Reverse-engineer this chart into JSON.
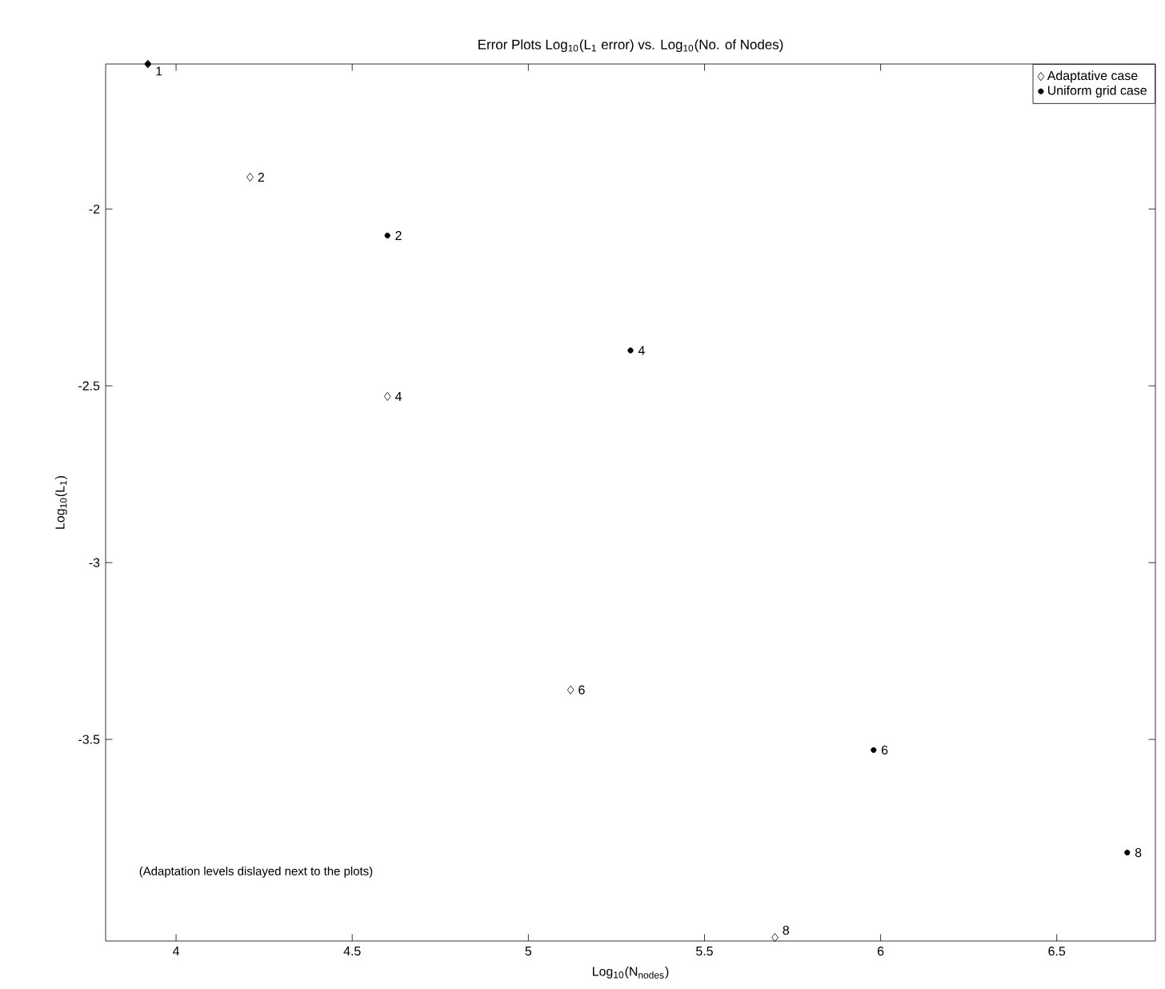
{
  "chart_data": {
    "type": "scatter",
    "title": "Error Plots Log$_{10}$(L$_{1}$ error) vs. Log$_{10}$(No. of Nodes)",
    "xlabel": "Log$_{10}$(N$_{nodes}$)",
    "ylabel": "Log$_{10}$(L$_{1}$)",
    "series": [
      {
        "name": "Adaptative case",
        "color": "#000000",
        "marker": "diamond",
        "x": [
          3.92,
          4.21,
          4.6,
          5.12,
          5.7
        ],
        "values": [
          -1.59,
          -1.91,
          -2.53,
          -3.36,
          -4.06
        ]
      },
      {
        "name": "Uniform grid case",
        "color": "#000000",
        "marker": "circle",
        "x": [
          3.92,
          4.6,
          5.29,
          5.98,
          6.7
        ],
        "values": [
          -1.59,
          -2.075,
          -2.4,
          -3.53,
          -3.82
        ]
      }
    ],
    "xlim": [
      3.8,
      6.78
    ],
    "ylim": [
      -4.07,
      -1.59
    ],
    "xticks": [
      4,
      4.5,
      5,
      5.5,
      6,
      6.5
    ],
    "yticks": [
      -2,
      -2.5,
      -3,
      -3.5
    ],
    "legend": "top right",
    "grid": false,
    "annotations": [
      {
        "text": "1",
        "x": 3.92,
        "y": -1.59
      },
      {
        "text": "2",
        "x": 4.21,
        "y": -1.91
      },
      {
        "text": "4",
        "x": 4.6,
        "y": -2.53
      },
      {
        "text": "6",
        "x": 5.12,
        "y": -3.36
      },
      {
        "text": "8",
        "x": 5.7,
        "y": -4.06
      },
      {
        "text": "2",
        "x": 4.6,
        "y": -2.075
      },
      {
        "text": "4",
        "x": 5.29,
        "y": -2.4
      },
      {
        "text": "6",
        "x": 5.98,
        "y": -3.53
      },
      {
        "text": "8",
        "x": 6.7,
        "y": -3.82
      },
      "(Adaptation levels dislayed next to the plots)"
    ]
  }
}
